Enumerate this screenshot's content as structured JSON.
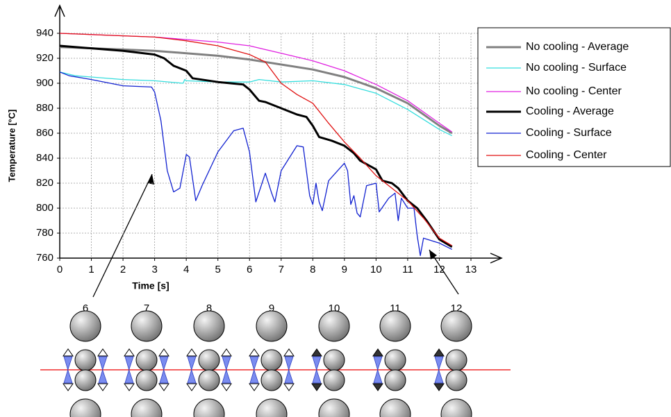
{
  "chart_data": {
    "type": "line",
    "xlabel": "Time [s]",
    "ylabel": "Temperature [°C]",
    "xlim": [
      0,
      13
    ],
    "ylim": [
      760,
      940
    ],
    "xticks": [
      0,
      1,
      2,
      3,
      4,
      5,
      6,
      7,
      8,
      9,
      10,
      11,
      12,
      13
    ],
    "yticks": [
      760,
      780,
      800,
      820,
      840,
      860,
      880,
      900,
      920,
      940
    ],
    "grid": true,
    "legend": "right",
    "series": [
      {
        "name": "No cooling - Average",
        "color": "#808080",
        "width": 3,
        "x": [
          0,
          1,
          2,
          3,
          4,
          5,
          6,
          7,
          8,
          9,
          10,
          11,
          12,
          12.4
        ],
        "values": [
          929,
          928,
          927,
          926,
          924,
          922,
          919,
          915,
          911,
          905,
          896,
          884,
          866,
          860
        ]
      },
      {
        "name": "No cooling - Surface",
        "color": "#33dddd",
        "width": 1.3,
        "x": [
          0,
          0.5,
          1,
          2,
          3,
          3.9,
          3.95,
          4,
          5,
          6,
          6.3,
          7,
          8,
          9,
          10,
          11,
          12,
          12.4
        ],
        "values": [
          909,
          906,
          905,
          903,
          902,
          900,
          903,
          902,
          901,
          901,
          903,
          901,
          902,
          899,
          892,
          879,
          863,
          858
        ]
      },
      {
        "name": "No cooling - Center",
        "color": "#e020e0",
        "width": 1.3,
        "x": [
          0,
          1,
          2,
          3,
          4,
          5,
          6,
          7,
          8,
          9,
          10,
          11,
          12,
          12.4
        ],
        "values": [
          940,
          939,
          938,
          937,
          935,
          933,
          930,
          924,
          918,
          910,
          899,
          886,
          868,
          861
        ]
      },
      {
        "name": "Cooling - Average",
        "color": "#000000",
        "width": 3,
        "x": [
          0,
          1,
          2,
          3,
          3.3,
          3.6,
          4,
          4.2,
          5,
          5.8,
          6,
          6.3,
          6.5,
          7,
          7.5,
          7.8,
          8,
          8.2,
          8.6,
          9,
          9.3,
          9.5,
          10,
          10.2,
          10.5,
          10.7,
          11,
          11.3,
          11.6,
          12,
          12.4
        ],
        "values": [
          930,
          928,
          926,
          923,
          920,
          914,
          910,
          904,
          901,
          899,
          895,
          886,
          885,
          880,
          875,
          873,
          866,
          857,
          854,
          850,
          844,
          838,
          831,
          822,
          820,
          816,
          806,
          800,
          790,
          775,
          769
        ]
      },
      {
        "name": "Cooling - Surface",
        "color": "#1020d0",
        "width": 1.3,
        "x": [
          0,
          0.3,
          1,
          2,
          2.9,
          3,
          3.2,
          3.4,
          3.6,
          3.8,
          4,
          4.1,
          4.3,
          4.5,
          5,
          5.5,
          5.8,
          6,
          6.2,
          6.5,
          6.7,
          6.8,
          7,
          7.5,
          7.7,
          7.9,
          8,
          8.1,
          8.2,
          8.3,
          8.5,
          9,
          9.1,
          9.2,
          9.3,
          9.4,
          9.5,
          9.7,
          10,
          10.1,
          10.4,
          10.6,
          10.7,
          10.8,
          11,
          11.2,
          11.3,
          11.4,
          11.5,
          12,
          12.4
        ],
        "values": [
          909,
          906,
          903,
          898,
          897,
          893,
          870,
          830,
          813,
          816,
          843,
          841,
          806,
          818,
          845,
          862,
          864,
          845,
          805,
          828,
          812,
          805,
          830,
          850,
          849,
          810,
          803,
          820,
          805,
          798,
          822,
          836,
          830,
          803,
          810,
          796,
          793,
          818,
          820,
          797,
          808,
          812,
          790,
          808,
          800,
          800,
          778,
          762,
          776,
          772,
          767
        ]
      },
      {
        "name": "Cooling - Center",
        "color": "#e01010",
        "width": 1.3,
        "x": [
          0,
          2,
          3,
          4,
          5,
          6,
          6.5,
          7,
          7.5,
          8,
          8.5,
          9,
          9.5,
          10,
          10.5,
          11,
          11.5,
          12,
          12.4
        ],
        "values": [
          940,
          938,
          937,
          934,
          930,
          923,
          917,
          900,
          891,
          884,
          868,
          853,
          840,
          826,
          816,
          806,
          792,
          776,
          770
        ]
      }
    ]
  },
  "diagram": {
    "stand_labels": [
      "6",
      "7",
      "8",
      "9",
      "10",
      "11",
      "12"
    ]
  }
}
